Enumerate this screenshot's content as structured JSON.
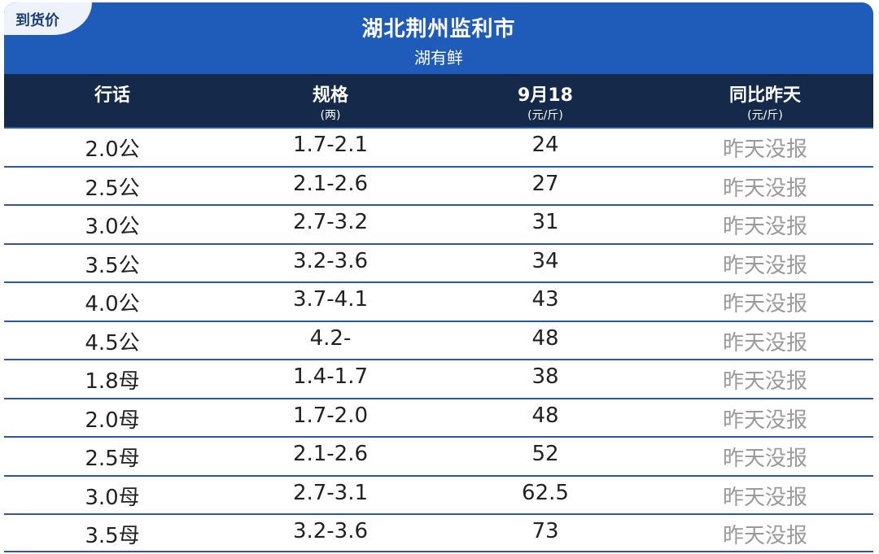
{
  "badge": "到货价",
  "title": "湖北荆州监利市",
  "subtitle": "湖有鲜",
  "headers": [
    {
      "main": "行话",
      "unit": ""
    },
    {
      "main": "规格",
      "unit": "(两)"
    },
    {
      "main": "9月18",
      "unit": "(元/斤)"
    },
    {
      "main": "同比昨天",
      "unit": "(元/斤)"
    }
  ],
  "rows": [
    {
      "term": "2.0公",
      "spec": "1.7-2.1",
      "price": "24",
      "compare": "昨天没报"
    },
    {
      "term": "2.5公",
      "spec": "2.1-2.6",
      "price": "27",
      "compare": "昨天没报"
    },
    {
      "term": "3.0公",
      "spec": "2.7-3.2",
      "price": "31",
      "compare": "昨天没报"
    },
    {
      "term": "3.5公",
      "spec": "3.2-3.6",
      "price": "34",
      "compare": "昨天没报"
    },
    {
      "term": "4.0公",
      "spec": "3.7-4.1",
      "price": "43",
      "compare": "昨天没报"
    },
    {
      "term": "4.5公",
      "spec": "4.2-",
      "price": "48",
      "compare": "昨天没报"
    },
    {
      "term": "1.8母",
      "spec": "1.4-1.7",
      "price": "38",
      "compare": "昨天没报"
    },
    {
      "term": "2.0母",
      "spec": "1.7-2.0",
      "price": "48",
      "compare": "昨天没报"
    },
    {
      "term": "2.5母",
      "spec": "2.1-2.6",
      "price": "52",
      "compare": "昨天没报"
    },
    {
      "term": "3.0母",
      "spec": "2.7-3.1",
      "price": "62.5",
      "compare": "昨天没报"
    },
    {
      "term": "3.5母",
      "spec": "3.2-3.6",
      "price": "73",
      "compare": "昨天没报"
    }
  ]
}
